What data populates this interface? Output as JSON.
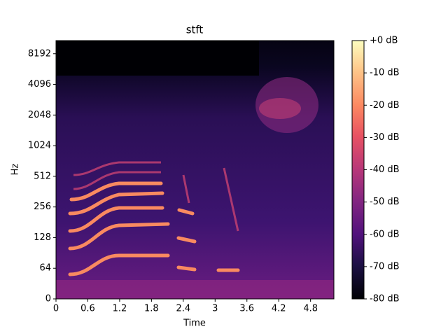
{
  "chart_data": {
    "type": "spectrogram",
    "title": "stft",
    "x_label": "Time",
    "y_label": "Hz",
    "xlim": [
      0,
      5.24
    ],
    "xticks": [
      0,
      0.6,
      1.2,
      1.8,
      2.4,
      3,
      3.6,
      4.2,
      4.8
    ],
    "ylim": [
      0,
      11025
    ],
    "yscale": "symlog",
    "ylinthresh": 64,
    "yticks": [
      0,
      64,
      128,
      256,
      512,
      1024,
      2048,
      4096,
      8192
    ],
    "colormap": "magma",
    "colorbar": {
      "lim": [
        -80,
        0
      ],
      "ticks": [
        {
          "value": 0,
          "label": "+0 dB"
        },
        {
          "value": -10,
          "label": "-10 dB"
        },
        {
          "value": -20,
          "label": "-20 dB"
        },
        {
          "value": -30,
          "label": "-30 dB"
        },
        {
          "value": -40,
          "label": "-40 dB"
        },
        {
          "value": -50,
          "label": "-50 dB"
        },
        {
          "value": -60,
          "label": "-60 dB"
        },
        {
          "value": -70,
          "label": "-70 dB"
        },
        {
          "value": -80,
          "label": "-80 dB"
        }
      ]
    }
  }
}
